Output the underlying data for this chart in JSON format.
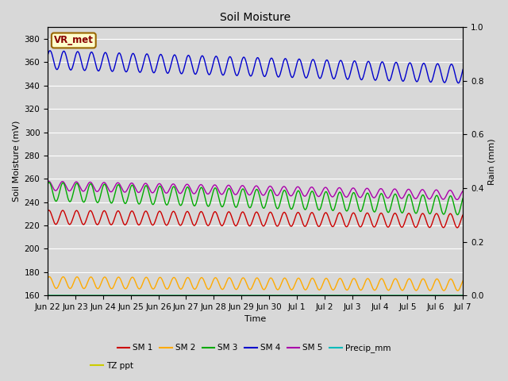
{
  "title": "Soil Moisture",
  "ylabel_left": "Soil Moisture (mV)",
  "ylabel_right": "Rain (mm)",
  "xlabel": "Time",
  "annotation_text": "VR_met",
  "annotation_bg": "#ffffcc",
  "annotation_border": "#996600",
  "annotation_text_color": "#880000",
  "ylim_left": [
    160,
    390
  ],
  "ylim_right": [
    0.0,
    1.0
  ],
  "background_color": "#d8d8d8",
  "num_points": 1440,
  "legend_entries": [
    "SM 1",
    "SM 2",
    "SM 3",
    "SM 4",
    "SM 5",
    "Precip_mm",
    "TZ ppt"
  ],
  "legend_colors": [
    "#cc0000",
    "#ffaa00",
    "#00aa00",
    "#0000cc",
    "#aa00aa",
    "#00bbbb",
    "#cccc00"
  ],
  "sm1_base": 227,
  "sm1_amp": 6,
  "sm1_trend": -3,
  "sm2_base": 171,
  "sm2_amp": 5,
  "sm2_trend": -2,
  "sm3_base": 249,
  "sm3_amp": 8,
  "sm3_trend": -12,
  "sm4_base": 362,
  "sm4_amp": 8,
  "sm4_trend": -12,
  "sm5_base": 254,
  "sm5_amp": 4,
  "sm5_trend": -8,
  "tz_base": 160,
  "xtick_labels": [
    "Jun 22",
    "Jun 23",
    "Jun 24",
    "Jun 25",
    "Jun 26",
    "Jun 27",
    "Jun 28",
    "Jun 29",
    "Jun 30",
    "Jul 1",
    "Jul 2",
    "Jul 3",
    "Jul 4",
    "Jul 5",
    "Jul 6",
    "Jul 7"
  ],
  "yticks_left": [
    160,
    180,
    200,
    220,
    240,
    260,
    280,
    300,
    320,
    340,
    360,
    380
  ],
  "yticks_right": [
    0.0,
    0.2,
    0.4,
    0.6,
    0.8,
    1.0
  ],
  "grid_color": "#ffffff",
  "title_fontsize": 10,
  "axis_fontsize": 8,
  "tick_fontsize": 7.5
}
